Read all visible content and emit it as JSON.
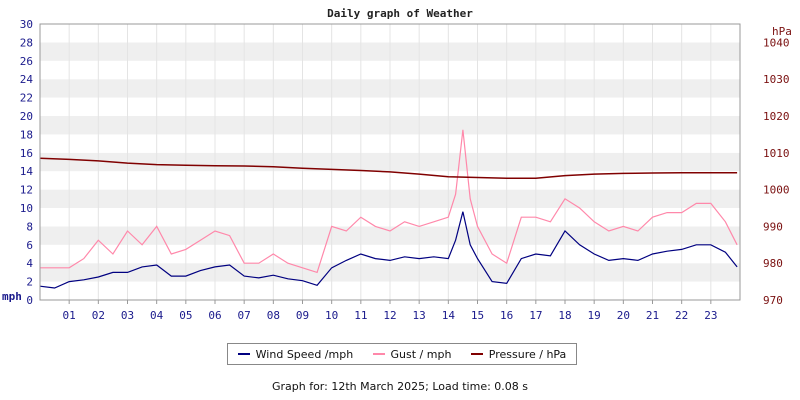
{
  "chart_data": {
    "type": "line",
    "title": "Daily graph of Weather",
    "left_axis": {
      "unit": "mph",
      "ylim": [
        0,
        30
      ],
      "ticks": [
        0,
        2,
        4,
        6,
        8,
        10,
        12,
        14,
        16,
        18,
        20,
        22,
        24,
        26,
        28,
        30
      ]
    },
    "right_axis": {
      "unit": "hPa",
      "ylim": [
        970,
        1045
      ],
      "ticks": [
        970,
        980,
        990,
        1000,
        1010,
        1020,
        1030,
        1040
      ]
    },
    "x_ticks": [
      "01",
      "02",
      "03",
      "04",
      "05",
      "06",
      "07",
      "08",
      "09",
      "10",
      "11",
      "12",
      "13",
      "14",
      "15",
      "16",
      "17",
      "18",
      "19",
      "20",
      "21",
      "22",
      "23"
    ],
    "x_range_hours": [
      0,
      24
    ],
    "grid": true,
    "legend_position": "bottom",
    "series": [
      {
        "name": "Wind Speed /mph",
        "axis": "left",
        "color": "#000080",
        "x": [
          0,
          0.5,
          1,
          1.5,
          2,
          2.5,
          3,
          3.5,
          4,
          4.5,
          5,
          5.5,
          6,
          6.5,
          7,
          7.5,
          8,
          8.5,
          9,
          9.5,
          10,
          10.5,
          11,
          11.5,
          12,
          12.5,
          13,
          13.5,
          14,
          14.25,
          14.5,
          14.75,
          15,
          15.5,
          16,
          16.5,
          17,
          17.5,
          18,
          18.5,
          19,
          19.5,
          20,
          20.5,
          21,
          21.5,
          22,
          22.5,
          23,
          23.5,
          23.9
        ],
        "y": [
          1.5,
          1.3,
          2,
          2.2,
          2.5,
          3,
          3,
          3.6,
          3.8,
          2.6,
          2.6,
          3.2,
          3.6,
          3.8,
          2.6,
          2.4,
          2.7,
          2.3,
          2.1,
          1.6,
          3.5,
          4.3,
          5,
          4.5,
          4.3,
          4.7,
          4.5,
          4.7,
          4.5,
          6.5,
          9.6,
          6,
          4.5,
          2,
          1.8,
          4.5,
          5,
          4.8,
          7.5,
          6,
          5,
          4.3,
          4.5,
          4.3,
          5,
          5.3,
          5.5,
          6,
          6,
          5.2,
          3.6
        ]
      },
      {
        "name": "Gust / mph",
        "axis": "left",
        "color": "#ff88aa",
        "x": [
          0,
          0.5,
          1,
          1.5,
          2,
          2.5,
          3,
          3.5,
          4,
          4.5,
          5,
          5.5,
          6,
          6.5,
          7,
          7.5,
          8,
          8.5,
          9,
          9.5,
          10,
          10.5,
          11,
          11.5,
          12,
          12.5,
          13,
          13.5,
          14,
          14.25,
          14.5,
          14.75,
          15,
          15.5,
          16,
          16.5,
          17,
          17.5,
          18,
          18.5,
          19,
          19.5,
          20,
          20.5,
          21,
          21.5,
          22,
          22.5,
          23,
          23.5,
          23.9
        ],
        "y": [
          3.5,
          3.5,
          3.5,
          4.5,
          6.5,
          5,
          7.5,
          6,
          8,
          5,
          5.5,
          6.5,
          7.5,
          7,
          4,
          4,
          5,
          4,
          3.5,
          3,
          8,
          7.5,
          9,
          8,
          7.5,
          8.5,
          8,
          8.5,
          9,
          11.5,
          18.5,
          11,
          8,
          5,
          4,
          9,
          9,
          8.5,
          11,
          10,
          8.5,
          7.5,
          8,
          7.5,
          9,
          9.5,
          9.5,
          10.5,
          10.5,
          8.5,
          6
        ]
      },
      {
        "name": "Pressure / hPa",
        "axis": "right",
        "color": "#800000",
        "x": [
          0,
          1,
          2,
          3,
          4,
          5,
          6,
          7,
          8,
          9,
          10,
          11,
          12,
          13,
          14,
          14.5,
          15,
          16,
          17,
          18,
          19,
          20,
          21,
          22,
          23,
          23.9
        ],
        "y": [
          1008.5,
          1008.2,
          1007.8,
          1007.2,
          1006.8,
          1006.6,
          1006.5,
          1006.4,
          1006.2,
          1005.8,
          1005.5,
          1005.2,
          1004.8,
          1004.2,
          1003.5,
          1003.4,
          1003.3,
          1003.1,
          1003.1,
          1003.8,
          1004.2,
          1004.4,
          1004.5,
          1004.6,
          1004.6,
          1004.6
        ]
      }
    ]
  },
  "legend": {
    "wind": "Wind Speed /mph",
    "gust": "Gust / mph",
    "pressure": "Pressure / hPa"
  },
  "footer": "Graph for: 12th March 2025; Load time: 0.08 s"
}
